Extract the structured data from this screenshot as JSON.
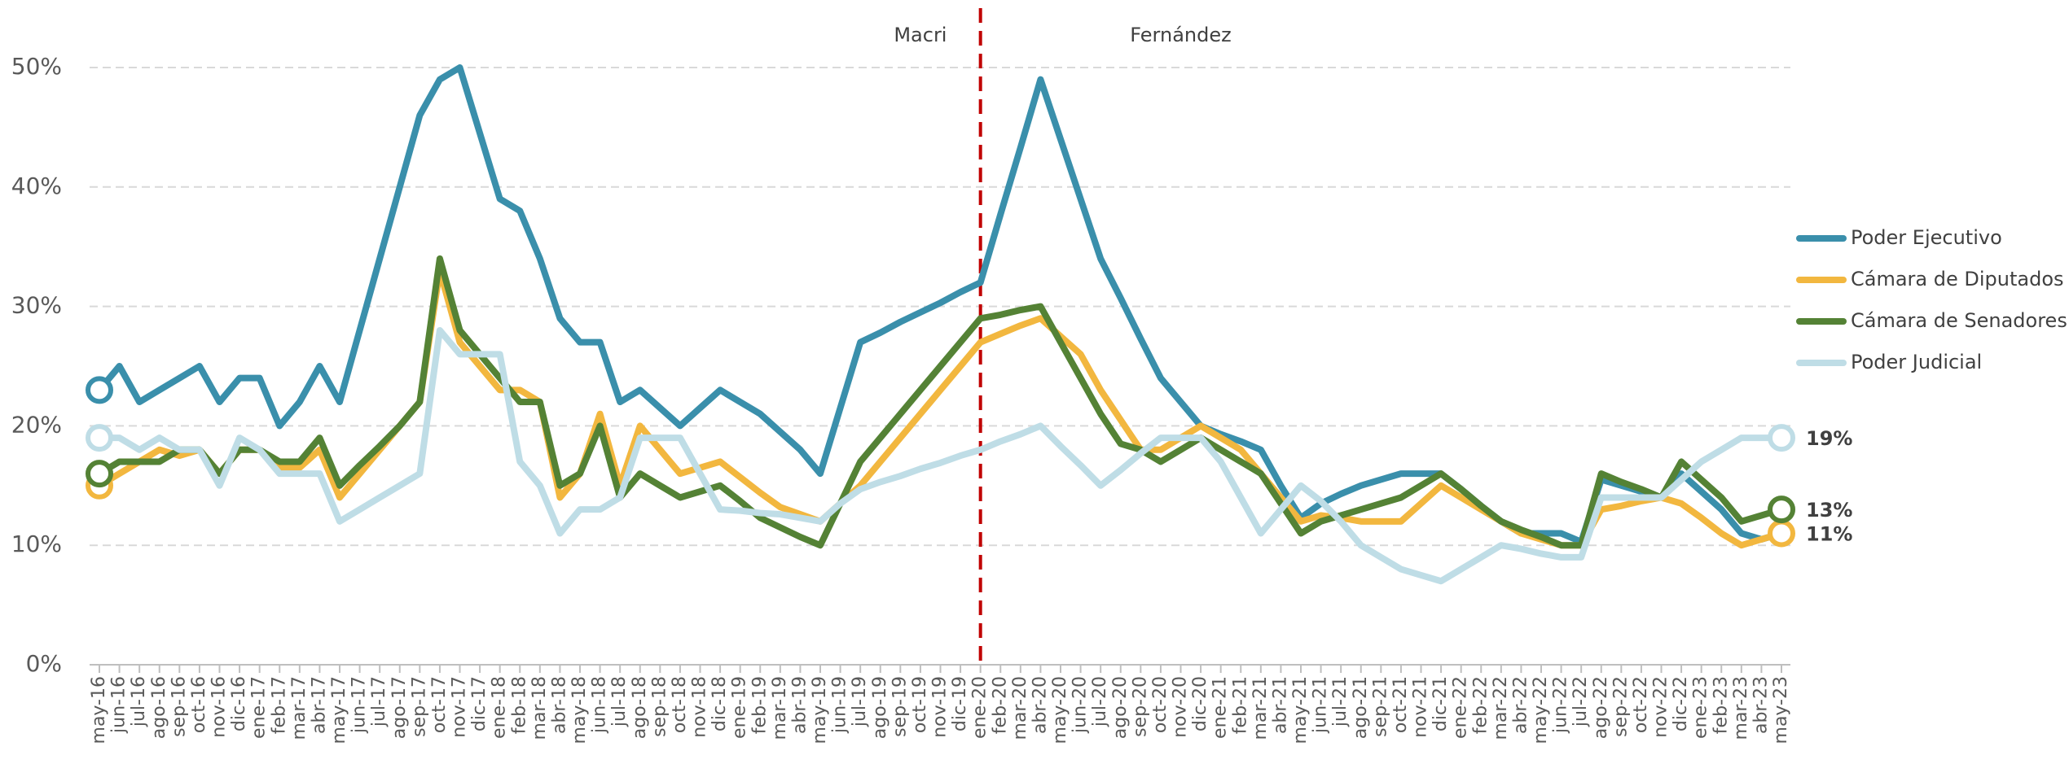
{
  "chart_data": {
    "type": "line",
    "categories": [
      "may-16",
      "jun-16",
      "jul-16",
      "ago-16",
      "sep-16",
      "oct-16",
      "nov-16",
      "dic-16",
      "ene-17",
      "feb-17",
      "mar-17",
      "abr-17",
      "may-17",
      "jun-17",
      "jul-17",
      "ago-17",
      "sep-17",
      "oct-17",
      "nov-17",
      "dic-17",
      "ene-18",
      "feb-18",
      "mar-18",
      "abr-18",
      "may-18",
      "jun-18",
      "jul-18",
      "ago-18",
      "sep-18",
      "oct-18",
      "nov-18",
      "dic-18",
      "ene-19",
      "feb-19",
      "mar-19",
      "abr-19",
      "may-19",
      "jun-19",
      "jul-19",
      "ago-19",
      "sep-19",
      "oct-19",
      "nov-19",
      "dic-19",
      "ene-20",
      "feb-20",
      "mar-20",
      "abr-20",
      "may-20",
      "jun-20",
      "jul-20",
      "ago-20",
      "sep-20",
      "oct-20",
      "nov-20",
      "dic-20",
      "ene-21",
      "feb-21",
      "mar-21",
      "abr-21",
      "may-21",
      "jun-21",
      "jul-21",
      "ago-21",
      "sep-21",
      "oct-21",
      "nov-21",
      "dic-21",
      "ene-22",
      "feb-22",
      "mar-22",
      "abr-22",
      "may-22",
      "jun-22",
      "jul-22",
      "ago-22",
      "sep-22",
      "oct-22",
      "nov-22",
      "dic-22",
      "ene-23",
      "feb-23",
      "mar-23",
      "abr-23",
      "may-23"
    ],
    "series": [
      {
        "name": "Poder Ejecutivo",
        "color": "#3a8fab",
        "values": [
          23,
          25,
          22,
          23,
          24,
          25,
          22,
          24,
          24,
          20,
          22,
          25,
          22,
          28,
          34,
          40,
          46,
          49,
          50,
          44.5,
          39,
          38,
          34,
          29,
          27,
          27,
          22,
          23,
          21.5,
          20,
          21.5,
          23,
          22,
          21,
          19.5,
          18,
          16,
          21.5,
          27,
          27.8,
          28.7,
          29.5,
          30.3,
          31.2,
          32,
          37.7,
          43.3,
          49,
          44,
          39,
          34,
          30.7,
          27.3,
          24,
          22,
          20,
          19.3,
          18.7,
          18,
          15,
          12.3,
          13.5,
          14.3,
          15,
          15.5,
          16,
          16,
          16,
          14.7,
          13.3,
          12,
          11,
          11,
          11,
          10.3,
          15.5,
          15,
          14.5,
          14,
          16,
          14.5,
          13,
          11,
          10.5,
          11
        ]
      },
      {
        "name": "Cámara de Diputados",
        "color": "#f2b73f",
        "end_label": "11%",
        "values": [
          15,
          16,
          17,
          18,
          17.5,
          18,
          16,
          18,
          18,
          16.5,
          16.5,
          18,
          14,
          16,
          18,
          20,
          22,
          33,
          27,
          25,
          23,
          23,
          22,
          14,
          16,
          21,
          15,
          20,
          18,
          16,
          16.5,
          17,
          15.7,
          14.4,
          13.2,
          12.6,
          12,
          13.5,
          15,
          17,
          19,
          21,
          23,
          25,
          27,
          27.7,
          28.4,
          29,
          27.5,
          26,
          23,
          20.5,
          18,
          18,
          19,
          20,
          19,
          18,
          16,
          14,
          12,
          12.5,
          12.3,
          12,
          12,
          12,
          13.5,
          15,
          14,
          13,
          12,
          11,
          10.5,
          10,
          10,
          13,
          13.3,
          13.7,
          14,
          13.5,
          12.3,
          11,
          10,
          10.5,
          11
        ]
      },
      {
        "name": "Cámara de Senadores",
        "color": "#548235",
        "end_label": "13%",
        "values": [
          16,
          17,
          17,
          17,
          18,
          18,
          16,
          18,
          18,
          17,
          17,
          19,
          15,
          16.7,
          18.3,
          20,
          22,
          34,
          28,
          26,
          24,
          22,
          22,
          15,
          16,
          20,
          14,
          16,
          15,
          14,
          14.5,
          15,
          13.7,
          12.3,
          11.5,
          10.7,
          10,
          13.5,
          17,
          19,
          21,
          23,
          25,
          27,
          29,
          29.3,
          29.7,
          30,
          27,
          24,
          21,
          18.5,
          18,
          17,
          18,
          19,
          18,
          17,
          16,
          13.5,
          11,
          12,
          12.5,
          13,
          13.5,
          14,
          15,
          16,
          14.7,
          13.3,
          12,
          11.3,
          10.7,
          10,
          10,
          16,
          15.3,
          14.7,
          14,
          17,
          15.5,
          14,
          12,
          12.5,
          13
        ]
      },
      {
        "name": "Poder Judicial",
        "color": "#bfdde6",
        "end_label": "19%",
        "values": [
          19,
          19,
          18,
          19,
          18,
          18,
          15,
          19,
          18,
          16,
          16,
          16,
          12,
          13,
          14,
          15,
          16,
          28,
          26,
          26,
          26,
          17,
          15,
          11,
          13,
          13,
          14,
          19,
          19,
          19,
          16,
          13,
          12.9,
          12.7,
          12.6,
          12.3,
          12,
          13.5,
          14.7,
          15.3,
          15.8,
          16.4,
          16.9,
          17.5,
          18,
          18.7,
          19.3,
          20,
          18.3,
          16.7,
          15,
          16.3,
          17.7,
          19,
          19,
          19,
          17,
          14,
          11,
          13,
          15,
          13.7,
          12,
          10,
          9,
          8,
          7.5,
          7,
          8,
          9,
          10,
          9.7,
          9.3,
          9,
          9,
          14,
          14,
          14,
          14,
          15.5,
          17,
          18,
          19,
          19,
          19
        ]
      }
    ],
    "ylim": [
      0,
      50
    ],
    "yticks": [
      {
        "value": 0,
        "label": "0%"
      },
      {
        "value": 10,
        "label": "10%"
      },
      {
        "value": 20,
        "label": "20%"
      },
      {
        "value": 30,
        "label": "30%"
      },
      {
        "value": 40,
        "label": "40%"
      },
      {
        "value": 50,
        "label": "50%"
      }
    ],
    "grid": true,
    "legend": "right",
    "divider": {
      "category": "ene-20",
      "color": "#c00000"
    },
    "annotations": [
      {
        "text": "Macri",
        "category": "oct-19"
      },
      {
        "text": "Fernández",
        "category": "nov-20"
      }
    ]
  }
}
